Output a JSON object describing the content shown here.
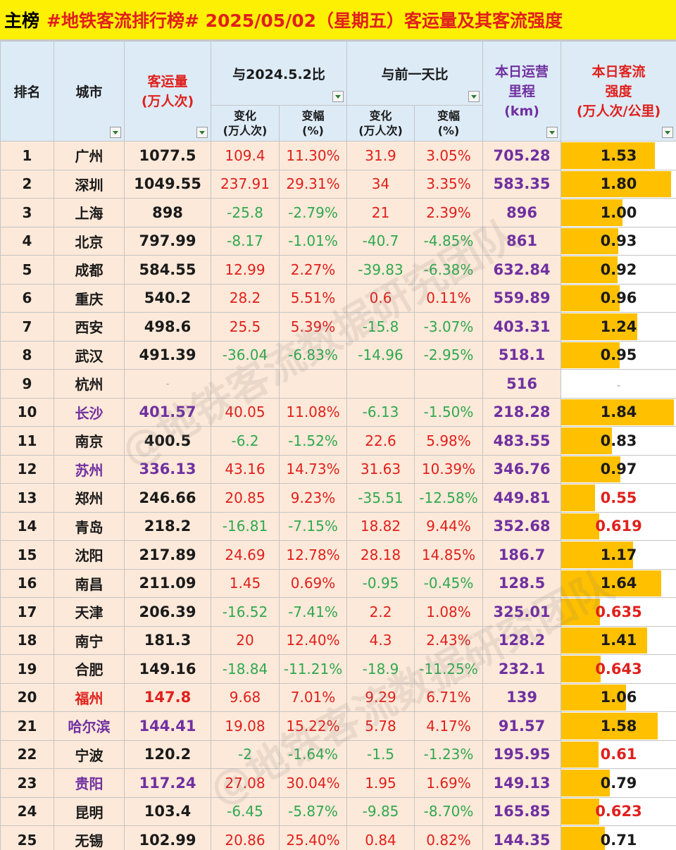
{
  "title": {
    "main": "主榜",
    "rest": "#地铁客流排行榜# 2025/05/02（星期五）客运量及其客流强度"
  },
  "headers": {
    "rank": "排名",
    "city": "城市",
    "volume": [
      "客运量",
      "(万人次)"
    ],
    "yoy_group": "与2024.5.2比",
    "dod_group": "与前一天比",
    "change": [
      "变化",
      "(万人次)"
    ],
    "pct": [
      "变幅",
      "(%)"
    ],
    "km": [
      "本日运营",
      "里程",
      "(km)"
    ],
    "intensity": [
      "本日客流",
      "强度",
      "(万人次/公里)"
    ]
  },
  "watermark": "@地铁客流数据研究团队",
  "colors": {
    "title_bg": "#fef003",
    "row_bg": "#fde9d9",
    "header_bg": "#ddebf7",
    "bar": "#ffc000",
    "red": "#e0201c",
    "green": "#2fa84f",
    "purple": "#7030a0"
  },
  "rows": [
    {
      "rank": "1",
      "city": "广州",
      "volume": "1077.5",
      "yoy_change": "109.4",
      "yoy_pct": "11.30%",
      "dod_change": "31.9",
      "dod_pct": "3.05%",
      "km": "705.28",
      "intensity": "1.53",
      "bar": 1.53,
      "city_color": "",
      "int_low": false
    },
    {
      "rank": "2",
      "city": "深圳",
      "volume": "1049.55",
      "yoy_change": "237.91",
      "yoy_pct": "29.31%",
      "dod_change": "34",
      "dod_pct": "3.35%",
      "km": "583.35",
      "intensity": "1.80",
      "bar": 1.8,
      "city_color": "",
      "int_low": false
    },
    {
      "rank": "3",
      "city": "上海",
      "volume": "898",
      "yoy_change": "-25.8",
      "yoy_pct": "-2.79%",
      "dod_change": "21",
      "dod_pct": "2.39%",
      "km": "896",
      "intensity": "1.00",
      "bar": 1.0,
      "city_color": "",
      "int_low": false
    },
    {
      "rank": "4",
      "city": "北京",
      "volume": "797.99",
      "yoy_change": "-8.17",
      "yoy_pct": "-1.01%",
      "dod_change": "-40.7",
      "dod_pct": "-4.85%",
      "km": "861",
      "intensity": "0.93",
      "bar": 0.93,
      "city_color": "",
      "int_low": false
    },
    {
      "rank": "5",
      "city": "成都",
      "volume": "584.55",
      "yoy_change": "12.99",
      "yoy_pct": "2.27%",
      "dod_change": "-39.83",
      "dod_pct": "-6.38%",
      "km": "632.84",
      "intensity": "0.92",
      "bar": 0.92,
      "city_color": "",
      "int_low": false
    },
    {
      "rank": "6",
      "city": "重庆",
      "volume": "540.2",
      "yoy_change": "28.2",
      "yoy_pct": "5.51%",
      "dod_change": "0.6",
      "dod_pct": "0.11%",
      "km": "559.89",
      "intensity": "0.96",
      "bar": 0.96,
      "city_color": "",
      "int_low": false
    },
    {
      "rank": "7",
      "city": "西安",
      "volume": "498.6",
      "yoy_change": "25.5",
      "yoy_pct": "5.39%",
      "dod_change": "-15.8",
      "dod_pct": "-3.07%",
      "km": "403.31",
      "intensity": "1.24",
      "bar": 1.24,
      "city_color": "",
      "int_low": false
    },
    {
      "rank": "8",
      "city": "武汉",
      "volume": "491.39",
      "yoy_change": "-36.04",
      "yoy_pct": "-6.83%",
      "dod_change": "-14.96",
      "dod_pct": "-2.95%",
      "km": "518.1",
      "intensity": "0.95",
      "bar": 0.95,
      "city_color": "",
      "int_low": false
    },
    {
      "rank": "9",
      "city": "杭州",
      "volume": "-",
      "yoy_change": "",
      "yoy_pct": "",
      "dod_change": "",
      "dod_pct": "",
      "km": "516",
      "intensity": "-",
      "bar": 0,
      "city_color": "",
      "int_low": false
    },
    {
      "rank": "10",
      "city": "长沙",
      "volume": "401.57",
      "yoy_change": "40.05",
      "yoy_pct": "11.08%",
      "dod_change": "-6.13",
      "dod_pct": "-1.50%",
      "km": "218.28",
      "intensity": "1.84",
      "bar": 1.84,
      "city_color": "purple",
      "int_low": false
    },
    {
      "rank": "11",
      "city": "南京",
      "volume": "400.5",
      "yoy_change": "-6.2",
      "yoy_pct": "-1.52%",
      "dod_change": "22.6",
      "dod_pct": "5.98%",
      "km": "483.55",
      "intensity": "0.83",
      "bar": 0.83,
      "city_color": "",
      "int_low": false
    },
    {
      "rank": "12",
      "city": "苏州",
      "volume": "336.13",
      "yoy_change": "43.16",
      "yoy_pct": "14.73%",
      "dod_change": "31.63",
      "dod_pct": "10.39%",
      "km": "346.76",
      "intensity": "0.97",
      "bar": 0.97,
      "city_color": "purple",
      "int_low": false
    },
    {
      "rank": "13",
      "city": "郑州",
      "volume": "246.66",
      "yoy_change": "20.85",
      "yoy_pct": "9.23%",
      "dod_change": "-35.51",
      "dod_pct": "-12.58%",
      "km": "449.81",
      "intensity": "0.55",
      "bar": 0.55,
      "city_color": "",
      "int_low": true
    },
    {
      "rank": "14",
      "city": "青岛",
      "volume": "218.2",
      "yoy_change": "-16.81",
      "yoy_pct": "-7.15%",
      "dod_change": "18.82",
      "dod_pct": "9.44%",
      "km": "352.68",
      "intensity": "0.619",
      "bar": 0.619,
      "city_color": "",
      "int_low": true
    },
    {
      "rank": "15",
      "city": "沈阳",
      "volume": "217.89",
      "yoy_change": "24.69",
      "yoy_pct": "12.78%",
      "dod_change": "28.18",
      "dod_pct": "14.85%",
      "km": "186.7",
      "intensity": "1.17",
      "bar": 1.17,
      "city_color": "",
      "int_low": false
    },
    {
      "rank": "16",
      "city": "南昌",
      "volume": "211.09",
      "yoy_change": "1.45",
      "yoy_pct": "0.69%",
      "dod_change": "-0.95",
      "dod_pct": "-0.45%",
      "km": "128.5",
      "intensity": "1.64",
      "bar": 1.64,
      "city_color": "",
      "int_low": false
    },
    {
      "rank": "17",
      "city": "天津",
      "volume": "206.39",
      "yoy_change": "-16.52",
      "yoy_pct": "-7.41%",
      "dod_change": "2.2",
      "dod_pct": "1.08%",
      "km": "325.01",
      "intensity": "0.635",
      "bar": 0.635,
      "city_color": "",
      "int_low": true
    },
    {
      "rank": "18",
      "city": "南宁",
      "volume": "181.3",
      "yoy_change": "20",
      "yoy_pct": "12.40%",
      "dod_change": "4.3",
      "dod_pct": "2.43%",
      "km": "128.2",
      "intensity": "1.41",
      "bar": 1.41,
      "city_color": "",
      "int_low": false
    },
    {
      "rank": "19",
      "city": "合肥",
      "volume": "149.16",
      "yoy_change": "-18.84",
      "yoy_pct": "-11.21%",
      "dod_change": "-18.9",
      "dod_pct": "-11.25%",
      "km": "232.1",
      "intensity": "0.643",
      "bar": 0.643,
      "city_color": "",
      "int_low": true
    },
    {
      "rank": "20",
      "city": "福州",
      "volume": "147.8",
      "yoy_change": "9.68",
      "yoy_pct": "7.01%",
      "dod_change": "9.29",
      "dod_pct": "6.71%",
      "km": "139",
      "intensity": "1.06",
      "bar": 1.06,
      "city_color": "red",
      "int_low": false
    },
    {
      "rank": "21",
      "city": "哈尔滨",
      "volume": "144.41",
      "yoy_change": "19.08",
      "yoy_pct": "15.22%",
      "dod_change": "5.78",
      "dod_pct": "4.17%",
      "km": "91.57",
      "intensity": "1.58",
      "bar": 1.58,
      "city_color": "purple",
      "int_low": false
    },
    {
      "rank": "22",
      "city": "宁波",
      "volume": "120.2",
      "yoy_change": "-2",
      "yoy_pct": "-1.64%",
      "dod_change": "-1.5",
      "dod_pct": "-1.23%",
      "km": "195.95",
      "intensity": "0.61",
      "bar": 0.61,
      "city_color": "",
      "int_low": true
    },
    {
      "rank": "23",
      "city": "贵阳",
      "volume": "117.24",
      "yoy_change": "27.08",
      "yoy_pct": "30.04%",
      "dod_change": "1.95",
      "dod_pct": "1.69%",
      "km": "149.13",
      "intensity": "0.79",
      "bar": 0.79,
      "city_color": "purple",
      "int_low": false
    },
    {
      "rank": "24",
      "city": "昆明",
      "volume": "103.4",
      "yoy_change": "-6.45",
      "yoy_pct": "-5.87%",
      "dod_change": "-9.85",
      "dod_pct": "-8.70%",
      "km": "165.85",
      "intensity": "0.623",
      "bar": 0.623,
      "city_color": "",
      "int_low": true
    },
    {
      "rank": "25",
      "city": "无锡",
      "volume": "102.99",
      "yoy_change": "20.86",
      "yoy_pct": "25.40%",
      "dod_change": "0.84",
      "dod_pct": "0.82%",
      "km": "144.35",
      "intensity": "0.71",
      "bar": 0.71,
      "city_color": "",
      "int_low": false
    }
  ]
}
